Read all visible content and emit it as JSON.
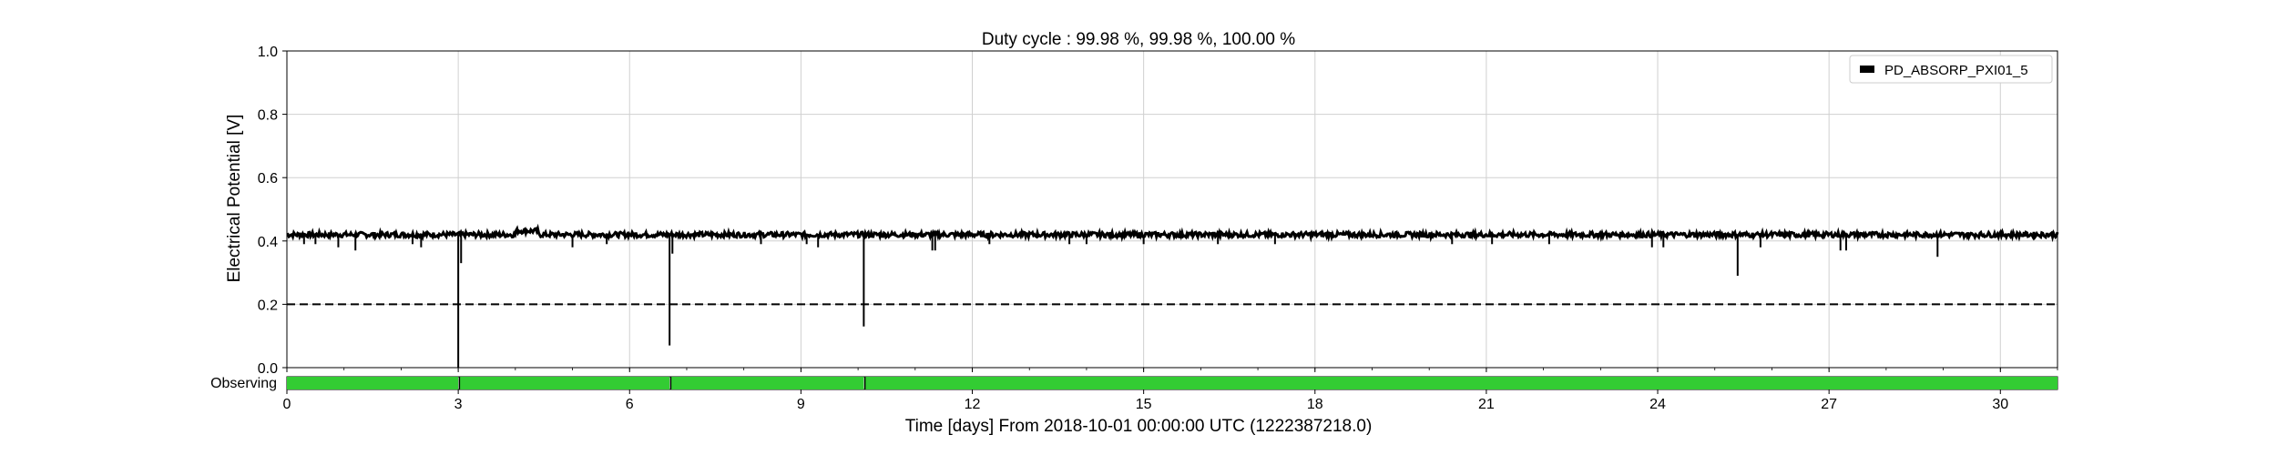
{
  "chart_data": {
    "type": "line",
    "title": "Duty cycle : 99.98 %, 99.98 %, 100.00 %",
    "xlabel": "Time [days] From 2018-10-01 00:00:00 UTC (1222387218.0)",
    "ylabel": "Electrical Potential [V]",
    "xlim": [
      0,
      31
    ],
    "ylim": [
      0,
      1.0
    ],
    "x_ticks": [
      "0",
      "3",
      "6",
      "9",
      "12",
      "15",
      "18",
      "21",
      "24",
      "27",
      "30"
    ],
    "y_ticks": [
      "0.0",
      "0.2",
      "0.4",
      "0.6",
      "0.8",
      "1.0"
    ],
    "grid": true,
    "legend_position": "top-right",
    "series": [
      {
        "name": "PD_ABSORP_PXI01_5",
        "color": "#000000",
        "baseline": 0.42,
        "dips": [
          {
            "x": 0.3,
            "y": 0.39
          },
          {
            "x": 0.5,
            "y": 0.39
          },
          {
            "x": 0.9,
            "y": 0.38
          },
          {
            "x": 1.2,
            "y": 0.37
          },
          {
            "x": 2.2,
            "y": 0.39
          },
          {
            "x": 2.35,
            "y": 0.38
          },
          {
            "x": 3.0,
            "y": 0.0
          },
          {
            "x": 3.05,
            "y": 0.33
          },
          {
            "x": 5.0,
            "y": 0.38
          },
          {
            "x": 5.6,
            "y": 0.39
          },
          {
            "x": 6.7,
            "y": 0.07
          },
          {
            "x": 6.75,
            "y": 0.36
          },
          {
            "x": 8.3,
            "y": 0.39
          },
          {
            "x": 9.1,
            "y": 0.39
          },
          {
            "x": 9.3,
            "y": 0.38
          },
          {
            "x": 10.1,
            "y": 0.13
          },
          {
            "x": 11.3,
            "y": 0.37
          },
          {
            "x": 11.35,
            "y": 0.37
          },
          {
            "x": 12.3,
            "y": 0.39
          },
          {
            "x": 13.7,
            "y": 0.39
          },
          {
            "x": 14.0,
            "y": 0.39
          },
          {
            "x": 15.0,
            "y": 0.39
          },
          {
            "x": 16.3,
            "y": 0.39
          },
          {
            "x": 17.3,
            "y": 0.39
          },
          {
            "x": 20.4,
            "y": 0.39
          },
          {
            "x": 21.1,
            "y": 0.39
          },
          {
            "x": 22.1,
            "y": 0.39
          },
          {
            "x": 23.9,
            "y": 0.38
          },
          {
            "x": 24.1,
            "y": 0.38
          },
          {
            "x": 25.4,
            "y": 0.29
          },
          {
            "x": 25.8,
            "y": 0.38
          },
          {
            "x": 27.2,
            "y": 0.37
          },
          {
            "x": 27.3,
            "y": 0.37
          },
          {
            "x": 28.9,
            "y": 0.35
          }
        ]
      }
    ],
    "threshold": {
      "y": 0.2,
      "style": "dashed",
      "color": "#000000"
    },
    "segments": {
      "label": "Observing",
      "color": "#33cc33",
      "intervals": [
        [
          0,
          3.0
        ],
        [
          3.02,
          6.7
        ],
        [
          6.72,
          10.1
        ],
        [
          10.12,
          31
        ]
      ]
    }
  }
}
